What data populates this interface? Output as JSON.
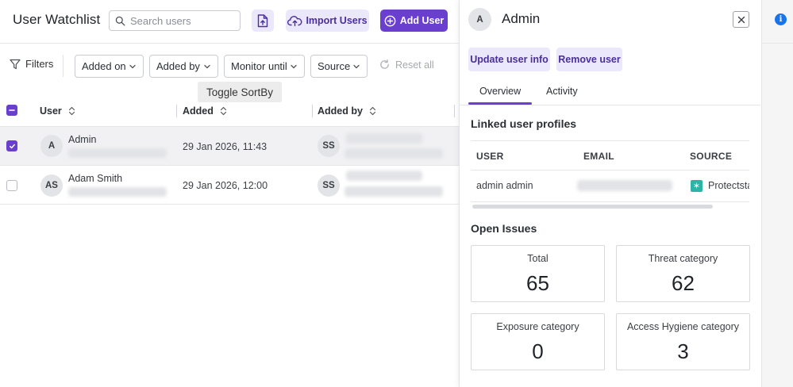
{
  "page": {
    "title": "User Watchlist",
    "search_placeholder": "Search users",
    "import_label": "Import Users",
    "add_label": "Add User"
  },
  "filters": {
    "label": "Filters",
    "chips": [
      "Added on",
      "Added by",
      "Monitor until",
      "Source"
    ],
    "reset_label": "Reset all"
  },
  "tooltip": "Toggle SortBy",
  "table": {
    "columns": [
      "User",
      "Added",
      "Added by"
    ],
    "rows": [
      {
        "initials": "A",
        "name": "Admin",
        "added": "29 Jan 2026, 11:43",
        "added_by_initials": "SS",
        "selected": true
      },
      {
        "initials": "AS",
        "name": "Adam Smith",
        "added": "29 Jan 2026, 12:00",
        "added_by_initials": "SS",
        "selected": false
      }
    ]
  },
  "panel": {
    "avatar_initials": "A",
    "title": "Admin",
    "actions": [
      "Update user info",
      "Remove user"
    ],
    "tabs": [
      "Overview",
      "Activity"
    ],
    "active_tab": "Overview",
    "linked_profiles": {
      "title": "Linked user profiles",
      "columns": [
        "USER",
        "EMAIL",
        "SOURCE"
      ],
      "rows": [
        {
          "user": "admin admin",
          "source": "Protectsta"
        }
      ]
    },
    "open_issues": {
      "title": "Open Issues",
      "cards": [
        {
          "label": "Total",
          "value": "65"
        },
        {
          "label": "Threat category",
          "value": "62"
        },
        {
          "label": "Exposure category",
          "value": "0"
        },
        {
          "label": "Access Hygiene category",
          "value": "3"
        }
      ]
    }
  },
  "colors": {
    "accent": "#6a3fd0",
    "accent_soft": "#ece8fb",
    "info": "#1a73e8"
  }
}
